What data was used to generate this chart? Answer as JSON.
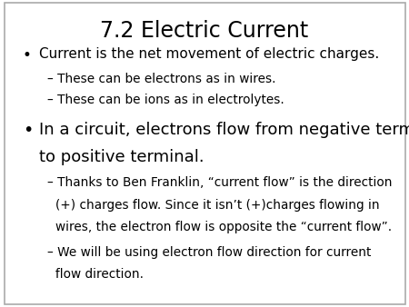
{
  "title": "7.2 Electric Current",
  "title_fontsize": 17,
  "title_color": "#000000",
  "bg_color": "#ffffff",
  "bullet1": "Current is the net movement of electric charges.",
  "sub1a": "– These can be electrons as in wires.",
  "sub1b": "– These can be ions as in electrolytes.",
  "bullet2_line1": "In a circuit, electrons flow from negative terminal",
  "bullet2_line2": "to positive terminal.",
  "sub2a_line1": "– Thanks to Ben Franklin, “current flow” is the direction",
  "sub2a_line2": "(+) charges flow. Since it isn’t (+)charges flowing in",
  "sub2a_line3": "wires, the electron flow is opposite the “current flow”.",
  "sub2b_line1": "– We will be using electron flow direction for current",
  "sub2b_line2": "flow direction.",
  "text_color": "#000000",
  "bullet_fontsize": 11.0,
  "sub_fontsize": 9.8,
  "border_color": "#aaaaaa"
}
